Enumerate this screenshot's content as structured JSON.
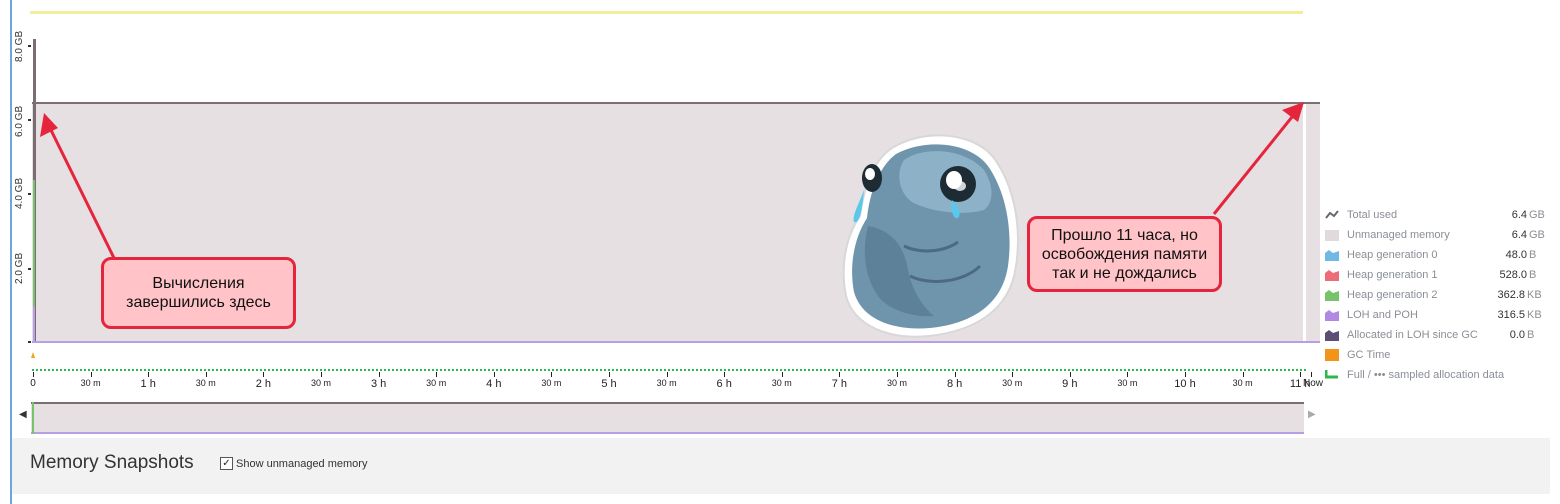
{
  "chart": {
    "y_axis": {
      "labels": [
        "8.0 GB",
        "6.0 GB",
        "4.0 GB",
        "2.0 GB"
      ]
    },
    "x_axis": {
      "labels": [
        "0",
        "30 m",
        "1 h",
        "30 m",
        "2 h",
        "30 m",
        "3 h",
        "30 m",
        "4 h",
        "30 m",
        "5 h",
        "30 m",
        "6 h",
        "30 m",
        "7 h",
        "30 m",
        "8 h",
        "30 m",
        "9 h",
        "30 m",
        "10 h",
        "30 m",
        "11 h",
        "Now"
      ]
    },
    "overview": {
      "left_arrow": "◀",
      "right_arrow": "▶"
    }
  },
  "callouts": {
    "left": "Вычисления\nзавершились здесь",
    "right": "Прошло 11 часа, но\nосвобождения памяти\nтак и не дождались"
  },
  "legend": [
    {
      "label": "Total used",
      "value": "6.4",
      "unit": "GB",
      "icon": "line-icon",
      "color": "#6d6470"
    },
    {
      "label": "Unmanaged memory",
      "value": "6.4",
      "unit": "GB",
      "icon": "area-icon",
      "color": "#e0dadb"
    },
    {
      "label": "Heap generation 0",
      "value": "48.0",
      "unit": "B",
      "icon": "area-icon",
      "color": "#71b9e3"
    },
    {
      "label": "Heap generation 1",
      "value": "528.0",
      "unit": "B",
      "icon": "area-icon",
      "color": "#ec6d78"
    },
    {
      "label": "Heap generation 2",
      "value": "362.8",
      "unit": "KB",
      "icon": "area-icon",
      "color": "#79c26c"
    },
    {
      "label": "LOH and POH",
      "value": "316.5",
      "unit": "KB",
      "icon": "area-icon",
      "color": "#b189e2"
    },
    {
      "label": "Allocated in LOH since GC",
      "value": "0.0",
      "unit": "B",
      "icon": "area-icon",
      "color": "#5b4d74"
    },
    {
      "label": "GC Time",
      "value": "",
      "unit": "",
      "icon": "square-icon",
      "color": "#f29418"
    },
    {
      "label": "Full / ••• sampled allocation data",
      "value": "",
      "unit": "",
      "icon": "step-icon",
      "color": "#2db84a"
    }
  ],
  "snapshots": {
    "title": "Memory Snapshots",
    "checkbox_label": "Show unmanaged memory",
    "checkbox_checked": "✓"
  }
}
